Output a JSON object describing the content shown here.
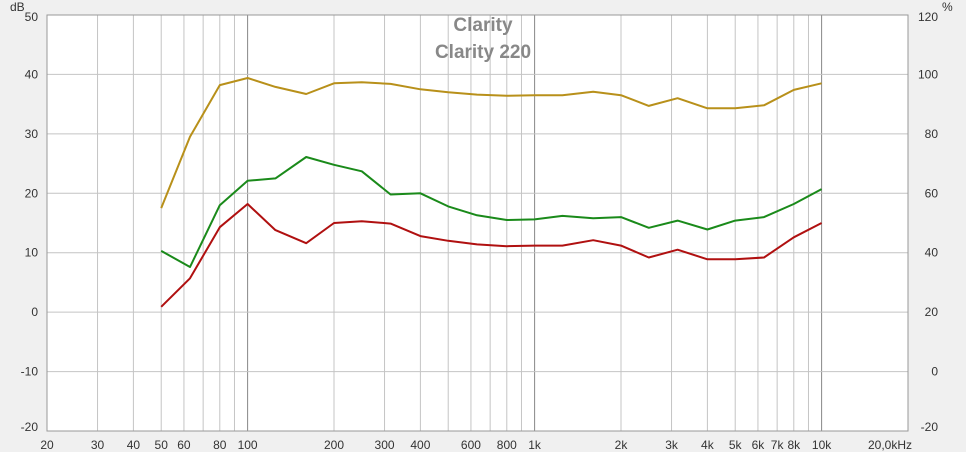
{
  "chart_data": {
    "type": "line",
    "title": "Clarity",
    "subtitle": "Clarity 220",
    "xscale": "log",
    "xlim": [
      20,
      20000
    ],
    "ylim": [
      -20,
      50
    ],
    "y2lim": [
      -20,
      120
    ],
    "ylabel": "dB",
    "y2label": "%",
    "grid": true,
    "x_ticks": [
      {
        "v": 20,
        "label": "20"
      },
      {
        "v": 30,
        "label": "30"
      },
      {
        "v": 40,
        "label": "40"
      },
      {
        "v": 50,
        "label": "50"
      },
      {
        "v": 60,
        "label": "60"
      },
      {
        "v": 80,
        "label": "80"
      },
      {
        "v": 100,
        "label": "100"
      },
      {
        "v": 200,
        "label": "200"
      },
      {
        "v": 300,
        "label": "300"
      },
      {
        "v": 400,
        "label": "400"
      },
      {
        "v": 600,
        "label": "600"
      },
      {
        "v": 800,
        "label": "800"
      },
      {
        "v": 1000,
        "label": "1k"
      },
      {
        "v": 2000,
        "label": "2k"
      },
      {
        "v": 3000,
        "label": "3k"
      },
      {
        "v": 4000,
        "label": "4k"
      },
      {
        "v": 5000,
        "label": "5k"
      },
      {
        "v": 6000,
        "label": "6k"
      },
      {
        "v": 7000,
        "label": "7k"
      },
      {
        "v": 8000,
        "label": "8k"
      },
      {
        "v": 10000,
        "label": "10k"
      },
      {
        "v": 20000,
        "label": "20,0kHz"
      }
    ],
    "y_ticks": [
      "50",
      "40",
      "30",
      "20",
      "10",
      "0",
      "-10",
      "-20"
    ],
    "y2_ticks": [
      "120",
      "100",
      "80",
      "60",
      "40",
      "20",
      "0",
      "-20"
    ],
    "x": [
      50,
      63,
      80,
      100,
      125,
      160,
      200,
      250,
      315,
      400,
      500,
      630,
      800,
      1000,
      1250,
      1600,
      2000,
      2500,
      3150,
      4000,
      5000,
      6300,
      8000,
      10000
    ],
    "series": [
      {
        "color": "#b8901a",
        "values": [
          17.5,
          29.5,
          38.2,
          39.4,
          37.9,
          36.7,
          38.5,
          38.7,
          38.4,
          37.5,
          37.0,
          36.6,
          36.4,
          36.5,
          36.5,
          37.1,
          36.5,
          34.7,
          36.0,
          34.3,
          34.3,
          34.8,
          37.4,
          38.5
        ]
      },
      {
        "color": "#1a8a1a",
        "values": [
          10.3,
          7.6,
          18.0,
          22.1,
          22.5,
          26.1,
          24.8,
          23.7,
          19.8,
          20.0,
          17.8,
          16.3,
          15.5,
          15.6,
          16.2,
          15.8,
          16.0,
          14.2,
          15.4,
          13.9,
          15.4,
          16.0,
          18.2,
          20.7
        ]
      },
      {
        "color": "#b01010",
        "values": [
          0.9,
          5.7,
          14.3,
          18.2,
          13.8,
          11.6,
          15.0,
          15.3,
          14.9,
          12.8,
          12.0,
          11.4,
          11.1,
          11.2,
          11.2,
          12.1,
          11.2,
          9.2,
          10.5,
          8.9,
          8.9,
          9.2,
          12.6,
          15.0
        ]
      }
    ]
  }
}
